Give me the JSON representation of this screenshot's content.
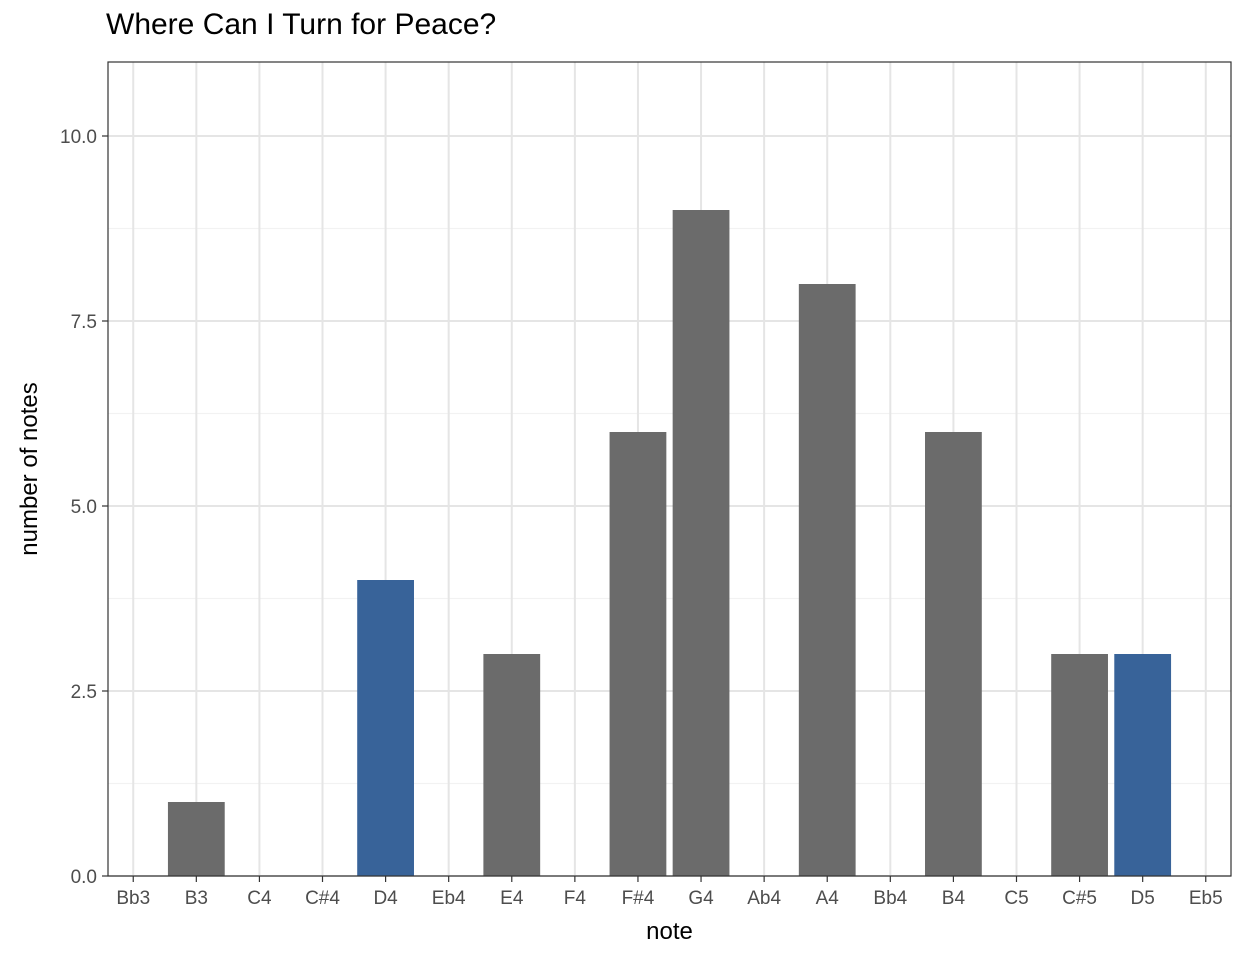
{
  "chart_data": {
    "type": "bar",
    "title": "Where Can I Turn for Peace?",
    "xlabel": "note",
    "ylabel": "number of notes",
    "categories": [
      "Bb3",
      "B3",
      "C4",
      "C#4",
      "D4",
      "Eb4",
      "E4",
      "F4",
      "F#4",
      "G4",
      "Ab4",
      "A4",
      "Bb4",
      "B4",
      "C5",
      "C#5",
      "D5",
      "Eb5"
    ],
    "values": [
      0,
      1,
      0,
      0,
      4,
      0,
      3,
      0,
      6,
      9,
      0,
      8,
      0,
      6,
      0,
      3,
      3,
      0
    ],
    "highlighted": [
      false,
      false,
      false,
      false,
      true,
      false,
      false,
      false,
      false,
      false,
      false,
      false,
      false,
      false,
      false,
      false,
      true,
      false
    ],
    "ylim": [
      0,
      11
    ],
    "yticks": [
      0,
      2.5,
      5,
      7.5,
      10
    ],
    "ytick_labels": [
      "0.0",
      "2.5",
      "5.0",
      "7.5",
      "10.0"
    ],
    "grid": true,
    "colors": {
      "default": "#6b6b6b",
      "highlight": "#386399",
      "grid_major": "#e5e5e5",
      "grid_minor": "#f2f2f2",
      "panel_border": "#333333"
    }
  }
}
